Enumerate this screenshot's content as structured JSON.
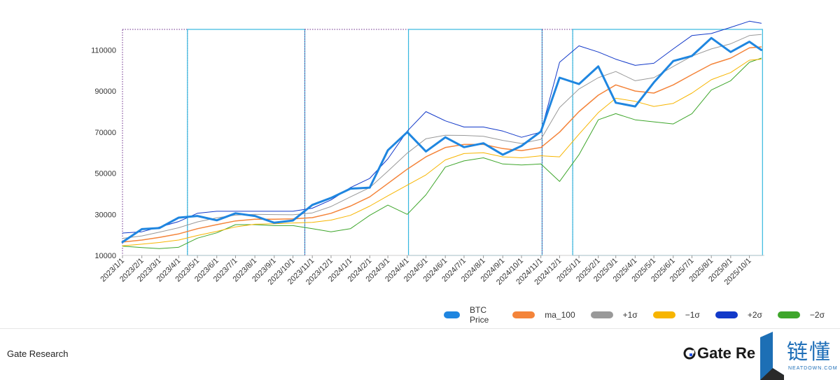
{
  "chart_data": {
    "type": "line",
    "title": "",
    "xlabel": "",
    "ylabel": "",
    "ylim": [
      10000,
      120000
    ],
    "yticks": [
      10000,
      30000,
      50000,
      70000,
      90000,
      110000
    ],
    "ytick_labels": [
      "10000",
      "30000",
      "50000",
      "70000",
      "90000",
      "110000"
    ],
    "xticks": [
      "2023/1/1",
      "2023/2/1",
      "2023/3/1",
      "2023/4/1",
      "2023/5/1",
      "2023/6/1",
      "2023/7/1",
      "2023/8/1",
      "2023/9/1",
      "2023/10/1",
      "2023/11/1",
      "2023/12/1",
      "2024/1/1",
      "2024/2/1",
      "2024/3/1",
      "2024/4/1",
      "2024/5/1",
      "2024/6/1",
      "2024/7/1",
      "2024/8/1",
      "2024/9/1",
      "2024/10/1",
      "2024/11/1",
      "2024/12/1",
      "2025/1/1",
      "2025/2/1",
      "2025/3/1",
      "2025/4/1",
      "2025/5/1",
      "2025/6/1",
      "2025/7/1",
      "2025/8/1",
      "2025/9/1",
      "2025/10/1"
    ],
    "legend_position": "bottom-right",
    "grid": false,
    "x": [
      "2023/1/1",
      "2023/2/1",
      "2023/3/1",
      "2023/4/1",
      "2023/5/1",
      "2023/6/1",
      "2023/7/1",
      "2023/8/1",
      "2023/9/1",
      "2023/10/1",
      "2023/11/1",
      "2023/12/1",
      "2024/1/1",
      "2024/2/1",
      "2024/3/1",
      "2024/4/1",
      "2024/5/1",
      "2024/6/1",
      "2024/7/1",
      "2024/8/1",
      "2024/9/1",
      "2024/10/1",
      "2024/11/1",
      "2024/12/1",
      "2025/1/1",
      "2025/2/1",
      "2025/3/1",
      "2025/4/1",
      "2025/5/1",
      "2025/6/1",
      "2025/7/1",
      "2025/8/1",
      "2025/9/1",
      "2025/10/1",
      "2025/10/20"
    ],
    "series": [
      {
        "name": "BTC Price",
        "color": "#1f86e0",
        "width": 3,
        "values": [
          16500,
          22800,
          23300,
          28400,
          29200,
          27100,
          30500,
          29200,
          25900,
          27000,
          34600,
          38000,
          42500,
          43000,
          61200,
          70000,
          60600,
          67500,
          62700,
          64600,
          59000,
          63300,
          70300,
          96500,
          93400,
          102000,
          84300,
          82500,
          94200,
          104600,
          107100,
          115800,
          109000,
          114000,
          110000
        ]
      },
      {
        "name": "ma_100",
        "color": "#f4843a",
        "width": 1.5,
        "values": [
          16500,
          17500,
          18800,
          20500,
          23000,
          25000,
          26800,
          27600,
          27600,
          27800,
          28400,
          30500,
          34000,
          38500,
          45000,
          52000,
          58000,
          62500,
          64000,
          64000,
          62000,
          61000,
          62500,
          70000,
          80000,
          88000,
          93000,
          90000,
          89000,
          93000,
          98000,
          103000,
          106000,
          111000,
          111500
        ]
      },
      {
        "name": "+1σ",
        "color": "#999999",
        "width": 1,
        "values": [
          18300,
          19500,
          21300,
          23500,
          26300,
          28300,
          29600,
          30000,
          29900,
          29800,
          30700,
          33800,
          38500,
          43000,
          51000,
          59800,
          66800,
          68500,
          68400,
          68000,
          66000,
          64500,
          66500,
          82000,
          91000,
          96500,
          99500,
          95000,
          96500,
          102000,
          107000,
          110500,
          113000,
          117000,
          117500
        ]
      },
      {
        "name": "−1σ",
        "color": "#f7b500",
        "width": 1,
        "values": [
          14700,
          15500,
          16300,
          17500,
          19700,
          21700,
          23900,
          25200,
          25400,
          25800,
          26100,
          27200,
          29500,
          34000,
          39000,
          44200,
          49200,
          56500,
          59600,
          60000,
          58000,
          57500,
          58500,
          58000,
          69000,
          79500,
          86500,
          85000,
          82500,
          84000,
          89000,
          95500,
          99000,
          105000,
          105500
        ]
      },
      {
        "name": "+2σ",
        "color": "#1239c9",
        "width": 1,
        "values": [
          20900,
          21500,
          23800,
          26500,
          30500,
          31500,
          31500,
          31500,
          31500,
          31500,
          33000,
          37000,
          43000,
          47500,
          57000,
          70500,
          80000,
          75500,
          72500,
          72500,
          70500,
          67500,
          70000,
          104000,
          112000,
          109000,
          105500,
          102500,
          103500,
          110500,
          117000,
          118000,
          121000,
          124000,
          123000
        ]
      },
      {
        "name": "−2σ",
        "color": "#3ea62b",
        "width": 1,
        "values": [
          14500,
          13800,
          13300,
          14000,
          18400,
          21000,
          25000,
          25000,
          24500,
          24500,
          23000,
          21500,
          23000,
          29500,
          34500,
          30000,
          39500,
          53000,
          56000,
          57500,
          54500,
          54000,
          54500,
          46000,
          59000,
          76000,
          79000,
          76000,
          75000,
          74000,
          79000,
          90500,
          95000,
          104000,
          106000
        ]
      }
    ],
    "regimes": [
      {
        "start": "2023/1/1",
        "end": "2023/4/15",
        "style": "dotted",
        "color": "#6a2a8a"
      },
      {
        "start": "2023/4/15",
        "end": "2023/10/20",
        "style": "solid",
        "color": "#35b8df"
      },
      {
        "start": "2023/10/20",
        "end": "2024/4/3",
        "style": "dotted",
        "color": "#6a2a8a"
      },
      {
        "start": "2024/4/3",
        "end": "2024/11/3",
        "style": "solid",
        "color": "#35b8df"
      },
      {
        "start": "2024/11/3",
        "end": "2024/12/22",
        "style": "dotted",
        "color": "#6a2a8a"
      },
      {
        "start": "2024/12/22",
        "end": "2025/10/22",
        "style": "solid",
        "color": "#35b8df"
      }
    ]
  },
  "legend": [
    {
      "label": "BTC Price",
      "color": "#1f86e0"
    },
    {
      "label": "ma_100",
      "color": "#f4843a"
    },
    {
      "label": "+1σ",
      "color": "#999999"
    },
    {
      "label": "−1σ",
      "color": "#f7b500"
    },
    {
      "label": "+2σ",
      "color": "#1239c9"
    },
    {
      "label": "−2σ",
      "color": "#3ea62b"
    }
  ],
  "footer": {
    "source": "Gate Research",
    "brand": "Gate Re",
    "watermark_text": "链懂",
    "watermark_sub": "NEATDOWN.COM"
  }
}
